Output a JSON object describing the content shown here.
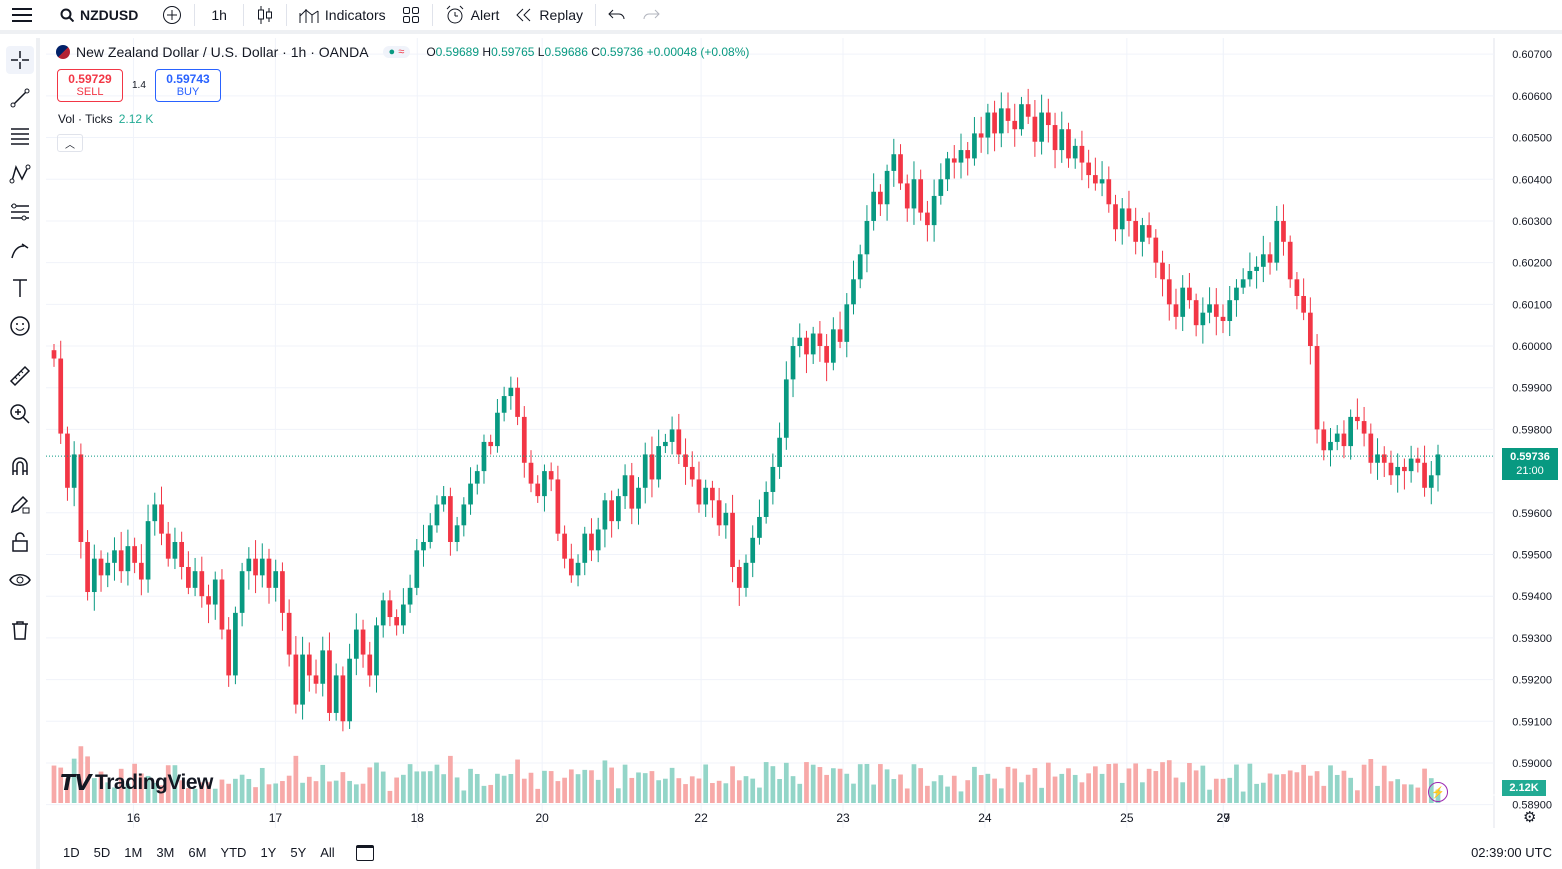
{
  "toolbar": {
    "symbol": "NZDUSD",
    "interval": "1h",
    "indicators_label": "Indicators",
    "alert_label": "Alert",
    "replay_label": "Replay"
  },
  "legend": {
    "title": "New Zealand Dollar / U.S. Dollar · 1h · OANDA",
    "open_label": "O",
    "open": "0.59689",
    "high_label": "H",
    "high": "0.59765",
    "low_label": "L",
    "low": "0.59686",
    "close_label": "C",
    "close": "0.59736",
    "change": "+0.00048 (+0.08%)"
  },
  "trade": {
    "sell_price": "0.59729",
    "sell_label": "SELL",
    "spread": "1.4",
    "buy_price": "0.59743",
    "buy_label": "BUY"
  },
  "volume_legend": {
    "label": "Vol · Ticks",
    "value": "2.12 K"
  },
  "price_badge": {
    "price": "0.59736",
    "countdown": "21:00"
  },
  "volume_badge": "2.12K",
  "logo_text": "TradingView",
  "price_axis": [
    "0.60700",
    "0.60600",
    "0.60500",
    "0.60400",
    "0.60300",
    "0.60200",
    "0.60100",
    "0.60000",
    "0.59900",
    "0.59800",
    "0.59600",
    "0.59500",
    "0.59400",
    "0.59300",
    "0.59200",
    "0.59100",
    "0.59000",
    "0.58900"
  ],
  "time_axis": [
    "16",
    "17",
    "18",
    "20",
    "22",
    "23",
    "24",
    "25",
    "27",
    "29"
  ],
  "ranges": [
    "1D",
    "5D",
    "1M",
    "3M",
    "6M",
    "YTD",
    "1Y",
    "5Y",
    "All"
  ],
  "utc_time": "02:39:00 UTC",
  "colors": {
    "up": "#089981",
    "down": "#f23645",
    "vol_up": "#93d5c8",
    "vol_down": "#f7a9a8"
  },
  "chart_data": {
    "type": "candlestick",
    "y_range": [
      0.5888,
      0.6071
    ],
    "closes": [
      0.5997,
      0.5979,
      0.5966,
      0.5974,
      0.5953,
      0.5941,
      0.5949,
      0.5945,
      0.5948,
      0.5951,
      0.5946,
      0.5952,
      0.5948,
      0.5944,
      0.5958,
      0.5962,
      0.5955,
      0.5949,
      0.5953,
      0.5947,
      0.5942,
      0.5946,
      0.594,
      0.5938,
      0.5944,
      0.5932,
      0.5921,
      0.5936,
      0.5946,
      0.5949,
      0.5945,
      0.5949,
      0.5942,
      0.5946,
      0.5936,
      0.5926,
      0.5914,
      0.5926,
      0.5921,
      0.5919,
      0.5927,
      0.5912,
      0.5921,
      0.591,
      0.5925,
      0.5932,
      0.5926,
      0.5921,
      0.5933,
      0.5939,
      0.5935,
      0.5933,
      0.5938,
      0.5942,
      0.5951,
      0.5953,
      0.5957,
      0.5962,
      0.5964,
      0.5953,
      0.5957,
      0.5962,
      0.5967,
      0.597,
      0.5977,
      0.5976,
      0.5984,
      0.5988,
      0.599,
      0.5983,
      0.5972,
      0.5967,
      0.5964,
      0.597,
      0.5968,
      0.5955,
      0.5949,
      0.5945,
      0.5948,
      0.5955,
      0.5951,
      0.5956,
      0.5963,
      0.5958,
      0.5964,
      0.5969,
      0.5961,
      0.5966,
      0.5974,
      0.5968,
      0.5976,
      0.5977,
      0.598,
      0.5974,
      0.5971,
      0.5968,
      0.5962,
      0.5966,
      0.5963,
      0.5957,
      0.596,
      0.5947,
      0.5942,
      0.5948,
      0.5954,
      0.5959,
      0.5965,
      0.5971,
      0.5978,
      0.5992,
      0.6,
      0.6002,
      0.5998,
      0.6003,
      0.6,
      0.5996,
      0.6004,
      0.6001,
      0.601,
      0.6016,
      0.6022,
      0.603,
      0.6037,
      0.6034,
      0.6042,
      0.6046,
      0.6039,
      0.6033,
      0.604,
      0.6032,
      0.6029,
      0.6036,
      0.604,
      0.6045,
      0.6044,
      0.6047,
      0.6045,
      0.6051,
      0.605,
      0.6056,
      0.6051,
      0.6057,
      0.6054,
      0.6052,
      0.6058,
      0.6055,
      0.6049,
      0.6056,
      0.6053,
      0.6047,
      0.6052,
      0.6045,
      0.6048,
      0.6044,
      0.6041,
      0.6039,
      0.604,
      0.6034,
      0.6028,
      0.6033,
      0.603,
      0.6025,
      0.6029,
      0.6026,
      0.602,
      0.6016,
      0.601,
      0.6007,
      0.6014,
      0.6011,
      0.6005,
      0.6008,
      0.601,
      0.6007,
      0.6006,
      0.6011,
      0.6014,
      0.6016,
      0.6018,
      0.6019,
      0.6022,
      0.602,
      0.603,
      0.6025,
      0.6016,
      0.6012,
      0.6008,
      0.6,
      0.598,
      0.5975,
      0.5977,
      0.5979,
      0.5976,
      0.5983,
      0.5982,
      0.5979,
      0.5972,
      0.5974,
      0.5972,
      0.5969,
      0.5971,
      0.597,
      0.5973,
      0.5972,
      0.5966,
      0.5969,
      0.5974
    ]
  }
}
